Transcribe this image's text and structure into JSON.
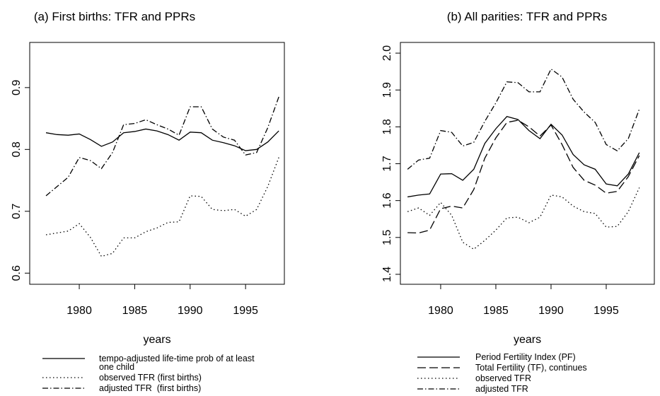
{
  "chart_data": [
    {
      "type": "line",
      "title": "(a) First births: TFR and PPRs",
      "xlabel": "years",
      "x": [
        1977,
        1978,
        1979,
        1980,
        1981,
        1982,
        1983,
        1984,
        1985,
        1986,
        1987,
        1988,
        1989,
        1990,
        1991,
        1992,
        1993,
        1994,
        1995,
        1996,
        1997,
        1998
      ],
      "xlim": [
        1975.53,
        1998.5
      ],
      "xticks": [
        1980,
        1985,
        1990,
        1995
      ],
      "ylim": [
        0.582,
        0.973
      ],
      "yticks": [
        0.6,
        0.7,
        0.8,
        0.9
      ],
      "series": [
        {
          "name": "tempo-adjusted life-time prob of at least one child",
          "color": "#000000",
          "linestyle": "solid",
          "values": [
            0.827,
            0.824,
            0.823,
            0.825,
            0.816,
            0.805,
            0.812,
            0.827,
            0.829,
            0.833,
            0.83,
            0.824,
            0.815,
            0.828,
            0.827,
            0.815,
            0.811,
            0.806,
            0.798,
            0.8,
            0.812,
            0.83
          ]
        },
        {
          "name": "observed TFR (first births)",
          "color": "#000000",
          "linestyle": "dotted",
          "values": [
            0.662,
            0.665,
            0.668,
            0.68,
            0.658,
            0.627,
            0.632,
            0.657,
            0.657,
            0.667,
            0.673,
            0.682,
            0.683,
            0.725,
            0.724,
            0.703,
            0.701,
            0.703,
            0.692,
            0.703,
            0.74,
            0.787
          ]
        },
        {
          "name": "adjusted TFR  (first births)",
          "color": "#000000",
          "linestyle": "dashdot",
          "values": [
            0.725,
            0.74,
            0.755,
            0.787,
            0.782,
            0.769,
            0.795,
            0.84,
            0.842,
            0.848,
            0.84,
            0.833,
            0.823,
            0.869,
            0.869,
            0.833,
            0.82,
            0.815,
            0.791,
            0.795,
            0.835,
            0.885
          ]
        }
      ]
    },
    {
      "type": "line",
      "title": "(b) All parities: TFR and PPRs",
      "xlabel": "years",
      "x": [
        1977,
        1978,
        1979,
        1980,
        1981,
        1982,
        1983,
        1984,
        1985,
        1986,
        1987,
        1988,
        1989,
        1990,
        1991,
        1992,
        1993,
        1994,
        1995,
        1996,
        1997,
        1998
      ],
      "xlim": [
        1976.35,
        1999.36
      ],
      "xticks": [
        1980,
        1985,
        1990,
        1995
      ],
      "ylim": [
        1.373,
        2.029
      ],
      "yticks": [
        1.4,
        1.5,
        1.6,
        1.7,
        1.8,
        1.9,
        {
          "value": 2.0,
          "label": "2.0"
        }
      ],
      "series": [
        {
          "name": "Period Fertility Index (PF)",
          "color": "#000000",
          "linestyle": "solid",
          "values": [
            1.61,
            1.615,
            1.618,
            1.672,
            1.673,
            1.655,
            1.685,
            1.755,
            1.795,
            1.828,
            1.82,
            1.79,
            1.768,
            1.807,
            1.778,
            1.725,
            1.697,
            1.685,
            1.645,
            1.64,
            1.672,
            1.73
          ]
        },
        {
          "name": "Total Fertility (TF), continues",
          "color": "#000000",
          "linestyle": "longdash",
          "values": [
            1.513,
            1.512,
            1.52,
            1.578,
            1.585,
            1.58,
            1.63,
            1.715,
            1.77,
            1.812,
            1.818,
            1.8,
            1.775,
            1.805,
            1.752,
            1.69,
            1.655,
            1.642,
            1.62,
            1.625,
            1.665,
            1.722
          ]
        },
        {
          "name": "observed TFR",
          "color": "#000000",
          "linestyle": "dotted",
          "values": [
            1.57,
            1.58,
            1.56,
            1.595,
            1.56,
            1.487,
            1.468,
            1.492,
            1.52,
            1.553,
            1.555,
            1.54,
            1.555,
            1.615,
            1.61,
            1.585,
            1.57,
            1.565,
            1.528,
            1.53,
            1.57,
            1.635
          ]
        },
        {
          "name": "adjusted TFR",
          "color": "#000000",
          "linestyle": "dashdot",
          "values": [
            1.685,
            1.71,
            1.715,
            1.79,
            1.785,
            1.748,
            1.758,
            1.815,
            1.865,
            1.922,
            1.92,
            1.895,
            1.895,
            1.957,
            1.935,
            1.875,
            1.84,
            1.812,
            1.752,
            1.735,
            1.768,
            1.848
          ]
        }
      ]
    }
  ]
}
